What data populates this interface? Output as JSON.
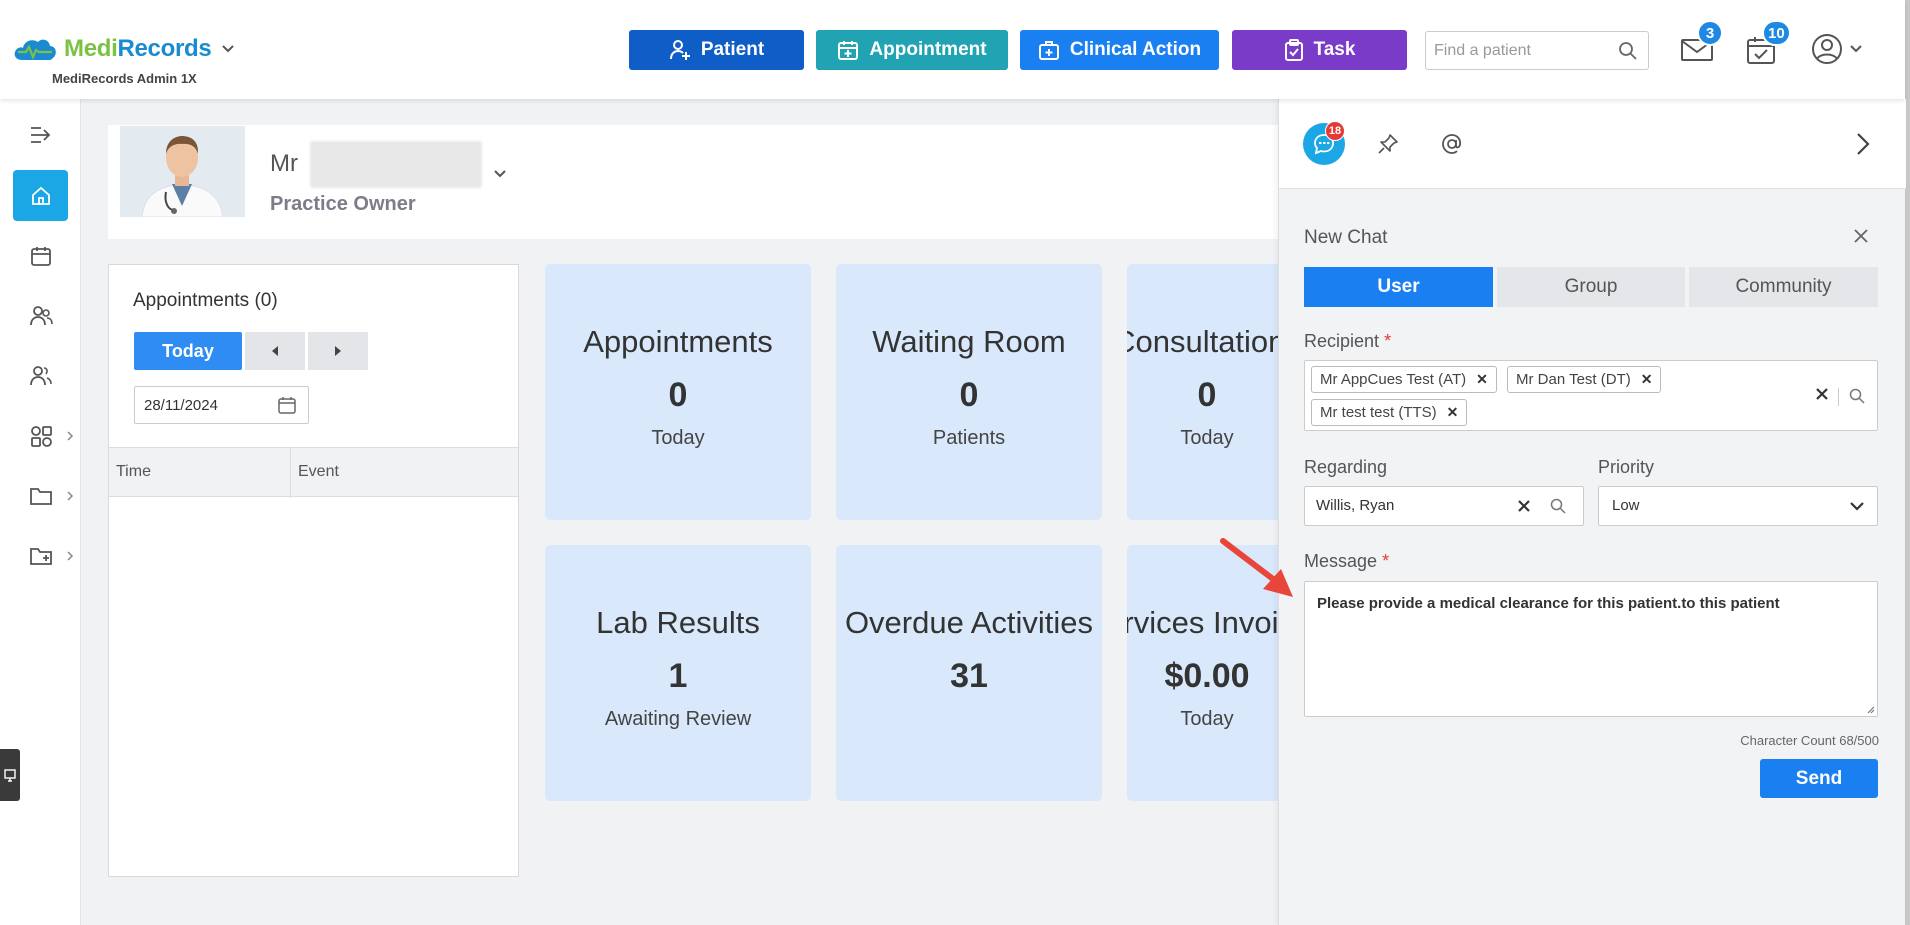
{
  "brand": {
    "logo_medi": "Medi",
    "logo_records": "Records",
    "org_name": "MediRecords Admin 1X",
    "colors": {
      "green": "#7cc242",
      "blue": "#1a8bd1"
    }
  },
  "header": {
    "buttons": [
      {
        "label": "Patient",
        "icon": "user-plus-icon",
        "color": "#0f5dc7"
      },
      {
        "label": "Appointment",
        "icon": "calendar-plus-icon",
        "color": "#22a3b4"
      },
      {
        "label": "Clinical Action",
        "icon": "medical-kit-icon",
        "color": "#1a7ff0"
      },
      {
        "label": "Task",
        "icon": "clipboard-check-icon",
        "color": "#7b3bc9"
      }
    ],
    "search_placeholder": "Find a patient",
    "mail_count": "3",
    "tasks_count": "10"
  },
  "sidebar": {
    "items": [
      {
        "icon": "expand-menu-icon"
      },
      {
        "icon": "home-icon",
        "active": true
      },
      {
        "icon": "calendar-icon"
      },
      {
        "icon": "patients-icon"
      },
      {
        "icon": "contacts-icon"
      },
      {
        "icon": "apps-icon",
        "has_submenu": true
      },
      {
        "icon": "folder-icon",
        "has_submenu": true
      },
      {
        "icon": "folder-plus-icon",
        "has_submenu": true
      }
    ]
  },
  "profile": {
    "title": "Mr",
    "role": "Practice Owner"
  },
  "appointments": {
    "title": "Appointments (0)",
    "today_label": "Today",
    "date": "28/11/2024",
    "col_time": "Time",
    "col_event": "Event"
  },
  "tiles": [
    {
      "title": "Appointments",
      "value": "0",
      "sub": "Today"
    },
    {
      "title": "Waiting Room",
      "value": "0",
      "sub": "Patients"
    },
    {
      "title": "Consultations",
      "value": "0",
      "sub": "Today"
    },
    {
      "title": "Lab Results",
      "value": "1",
      "sub": "Awaiting Review"
    },
    {
      "title": "Overdue Activities",
      "value": "31",
      "sub": ""
    },
    {
      "title": "Services Invoiced",
      "value": "$0.00",
      "sub": "Today"
    }
  ],
  "chat": {
    "unread_count": "18",
    "new_chat_title": "New Chat",
    "tabs": [
      "User",
      "Group",
      "Community"
    ],
    "active_tab": "User",
    "recipient_label": "Recipient",
    "recipients": [
      "Mr AppCues Test (AT)",
      "Mr Dan Test (DT)",
      "Mr test test (TTS)"
    ],
    "regarding_label": "Regarding",
    "regarding_value": "Willis, Ryan",
    "priority_label": "Priority",
    "priority_value": "Low",
    "message_label": "Message",
    "message_value": "Please provide a medical clearance for this patient.to this patient",
    "char_count": "Character Count 68/500",
    "send_label": "Send",
    "required_mark": "*"
  }
}
